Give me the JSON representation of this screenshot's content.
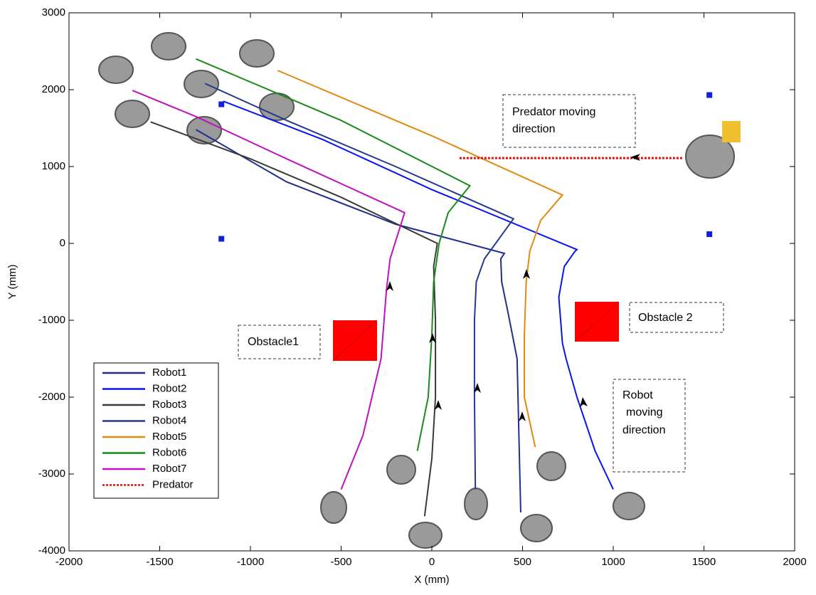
{
  "chart_data": {
    "type": "line",
    "xlabel": "X (mm)",
    "ylabel": "Y (mm)",
    "xlim": [
      -2000,
      2000
    ],
    "xticks": [
      -2000,
      -1500,
      -1000,
      -500,
      0,
      500,
      1000,
      1500,
      2000
    ],
    "ylim": [
      -4000,
      3000
    ],
    "yticks": [
      -4000,
      -3000,
      -2000,
      -1000,
      0,
      1000,
      2000,
      3000
    ],
    "grid": false,
    "legend": "lower left",
    "series": [
      {
        "name": "Robot1",
        "color": "#1f2f8f",
        "x": [
          490,
          480,
          470,
          420,
          385,
          380,
          400,
          -200,
          -800,
          -1300
        ],
        "values": [
          -3500,
          -2500,
          -1500,
          -900,
          -500,
          -200,
          -130,
          250,
          800,
          1480
        ]
      },
      {
        "name": "Robot2",
        "color": "#0a14f0",
        "x": [
          1000,
          900,
          800,
          740,
          720,
          700,
          730,
          790,
          800,
          0,
          -600,
          -1150
        ],
        "values": [
          -3200,
          -2700,
          -2000,
          -1500,
          -1300,
          -700,
          -300,
          -100,
          -80,
          700,
          1350,
          1850
        ]
      },
      {
        "name": "Robot3",
        "color": "#3a3a3a",
        "x": [
          -40,
          0,
          20,
          20,
          10,
          30,
          -500,
          -1000,
          -1550
        ],
        "values": [
          -3550,
          -2800,
          -2000,
          -1000,
          -300,
          0,
          600,
          1100,
          1580
        ]
      },
      {
        "name": "Robot4",
        "color": "#243a8c",
        "x": [
          240,
          235,
          235,
          245,
          290,
          450,
          -200,
          -800,
          -1250
        ],
        "values": [
          -3200,
          -2000,
          -1000,
          -500,
          -200,
          320,
          1000,
          1600,
          2080
        ]
      },
      {
        "name": "Robot5",
        "color": "#e08a10",
        "x": [
          570,
          510,
          510,
          520,
          540,
          600,
          720,
          0,
          -850
        ],
        "values": [
          -2650,
          -2000,
          -1200,
          -500,
          -100,
          300,
          630,
          1400,
          2250
        ]
      },
      {
        "name": "Robot6",
        "color": "#1a8a1a",
        "x": [
          -80,
          -20,
          0,
          10,
          40,
          90,
          210,
          -500,
          -1300
        ],
        "values": [
          -2700,
          -2000,
          -1200,
          -500,
          0,
          400,
          750,
          1600,
          2400
        ]
      },
      {
        "name": "Robot7",
        "color": "#c010c0",
        "x": [
          -500,
          -380,
          -280,
          -250,
          -230,
          -150,
          -800,
          -1300,
          -1650
        ],
        "values": [
          -3200,
          -2500,
          -1500,
          -600,
          -200,
          400,
          1100,
          1650,
          1990
        ]
      },
      {
        "name": "Predator",
        "color": "#e01010",
        "dash": true,
        "x": [
          1380,
          150
        ],
        "values": [
          1110,
          1110
        ]
      }
    ],
    "markers": {
      "color": "#1020e0",
      "x": [
        -1160,
        -1160,
        1530,
        1530
      ],
      "values": [
        1810,
        60,
        1930,
        120
      ]
    },
    "annotations": {
      "predator": [
        "Predator moving",
        "direction"
      ],
      "obstacle1": [
        "Obstacle1"
      ],
      "obstacle2": [
        "Obstacle 2"
      ],
      "robot": [
        "Robot",
        "moving",
        "direction"
      ]
    }
  }
}
